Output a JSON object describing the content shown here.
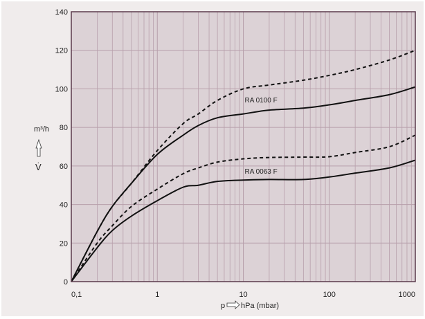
{
  "chart_data": {
    "type": "line",
    "xlabel": "hPa (mbar)",
    "xlabel_prefix": "p",
    "ylabel_unit": "m³/h",
    "ylabel_symbol": "V̇",
    "xscale": "log",
    "xlim": [
      0.1,
      1000
    ],
    "ylim": [
      0,
      140
    ],
    "grid": true,
    "colors": {
      "plot_bg": "#dcd2d6",
      "outer_bg": "#f0ecec",
      "grid": "#b79fab",
      "frame": "#5a3a4c",
      "line": "#111111"
    },
    "xticks": [
      {
        "v": 0.1,
        "label": "0,1"
      },
      {
        "v": 1,
        "label": "1"
      },
      {
        "v": 10,
        "label": "10"
      },
      {
        "v": 100,
        "label": "100"
      },
      {
        "v": 1000,
        "label": "1000"
      }
    ],
    "yticks": [
      {
        "v": 0,
        "label": "0"
      },
      {
        "v": 20,
        "label": "20"
      },
      {
        "v": 40,
        "label": "40"
      },
      {
        "v": 60,
        "label": "60"
      },
      {
        "v": 80,
        "label": "80"
      },
      {
        "v": 100,
        "label": "100"
      },
      {
        "v": 120,
        "label": "120"
      },
      {
        "v": 140,
        "label": "140"
      }
    ],
    "x": [
      0.1,
      0.2,
      0.3,
      0.5,
      1,
      2,
      3,
      5,
      10,
      20,
      50,
      100,
      200,
      500,
      1000
    ],
    "series": [
      {
        "style": "dashed",
        "values": [
          0,
          26,
          39,
          51,
          68,
          82,
          87,
          94,
          100,
          102,
          104.5,
          107,
          110,
          115,
          120
        ]
      },
      {
        "style": "solid",
        "values": [
          0,
          26,
          39,
          51,
          66,
          76,
          81,
          85,
          87,
          89,
          90,
          91.7,
          94,
          97,
          101
        ]
      },
      {
        "style": "dashed",
        "values": [
          0,
          20,
          29,
          39,
          48,
          56,
          59,
          62,
          63.7,
          64.4,
          64.6,
          64.8,
          67,
          70,
          76
        ]
      },
      {
        "style": "solid",
        "values": [
          0,
          17.6,
          26.5,
          34,
          42,
          49,
          50,
          52,
          52.7,
          53,
          53,
          54.3,
          56.3,
          59,
          63
        ]
      }
    ],
    "annotations": [
      {
        "text": "RA 0100 F",
        "x": 10,
        "y": 93
      },
      {
        "text": "RA 0063 F",
        "x": 10,
        "y": 56
      }
    ]
  }
}
